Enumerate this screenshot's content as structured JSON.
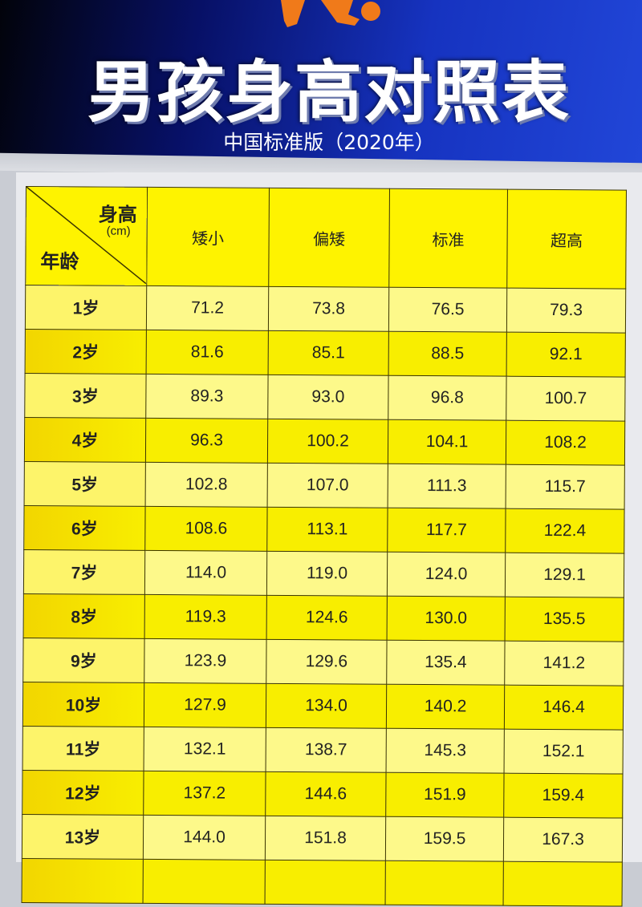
{
  "header": {
    "title": "男孩身高对照表",
    "subtitle": "中国标准版（2020年）"
  },
  "table": {
    "corner": {
      "height_label": "身高",
      "unit": "(cm)",
      "age_label": "年龄"
    },
    "columns": [
      "矮小",
      "偏矮",
      "标准",
      "超高"
    ],
    "rows": [
      {
        "age": "1岁",
        "values": [
          "71.2",
          "73.8",
          "76.5",
          "79.3"
        ]
      },
      {
        "age": "2岁",
        "values": [
          "81.6",
          "85.1",
          "88.5",
          "92.1"
        ]
      },
      {
        "age": "3岁",
        "values": [
          "89.3",
          "93.0",
          "96.8",
          "100.7"
        ]
      },
      {
        "age": "4岁",
        "values": [
          "96.3",
          "100.2",
          "104.1",
          "108.2"
        ]
      },
      {
        "age": "5岁",
        "values": [
          "102.8",
          "107.0",
          "111.3",
          "115.7"
        ]
      },
      {
        "age": "6岁",
        "values": [
          "108.6",
          "113.1",
          "117.7",
          "122.4"
        ]
      },
      {
        "age": "7岁",
        "values": [
          "114.0",
          "119.0",
          "124.0",
          "129.1"
        ]
      },
      {
        "age": "8岁",
        "values": [
          "119.3",
          "124.6",
          "130.0",
          "135.5"
        ]
      },
      {
        "age": "9岁",
        "values": [
          "123.9",
          "129.6",
          "135.4",
          "141.2"
        ]
      },
      {
        "age": "10岁",
        "values": [
          "127.9",
          "134.0",
          "140.2",
          "146.4"
        ]
      },
      {
        "age": "11岁",
        "values": [
          "132.1",
          "138.7",
          "145.3",
          "152.1"
        ]
      },
      {
        "age": "12岁",
        "values": [
          "137.2",
          "144.6",
          "151.9",
          "159.4"
        ]
      },
      {
        "age": "13岁",
        "values": [
          "144.0",
          "151.8",
          "159.5",
          "167.3"
        ]
      }
    ]
  },
  "colors": {
    "banner": "#1633c0",
    "header_cell": "#fef300",
    "row_light": "#fdf98a",
    "row_bright": "#f8ee00",
    "mascot": "#f07a1a"
  }
}
